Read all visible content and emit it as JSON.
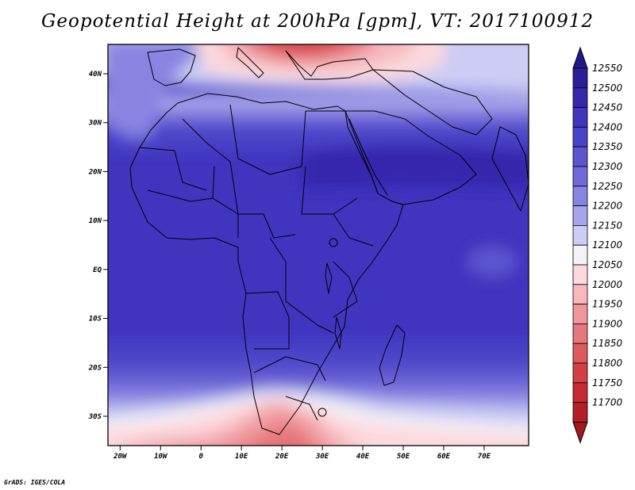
{
  "title": "Geopotential Height at 200hPa [gpm], VT: 2017100912",
  "credit": "GrADS: IGES/COLA",
  "map": {
    "lon_range": [
      -23,
      81
    ],
    "lat_range": [
      -36,
      46
    ],
    "lat_ticks": [
      {
        "value": 40,
        "label": "40N"
      },
      {
        "value": 30,
        "label": "30N"
      },
      {
        "value": 20,
        "label": "20N"
      },
      {
        "value": 10,
        "label": "10N"
      },
      {
        "value": 0,
        "label": "EQ"
      },
      {
        "value": -10,
        "label": "10S"
      },
      {
        "value": -20,
        "label": "20S"
      },
      {
        "value": -30,
        "label": "30S"
      }
    ],
    "lon_ticks": [
      {
        "value": -20,
        "label": "20W"
      },
      {
        "value": -10,
        "label": "10W"
      },
      {
        "value": 0,
        "label": "0"
      },
      {
        "value": 10,
        "label": "10E"
      },
      {
        "value": 20,
        "label": "20E"
      },
      {
        "value": 30,
        "label": "30E"
      },
      {
        "value": 40,
        "label": "40E"
      },
      {
        "value": 50,
        "label": "50E"
      },
      {
        "value": 60,
        "label": "60E"
      },
      {
        "value": 70,
        "label": "70E"
      }
    ]
  },
  "colorbar": {
    "levels": [
      {
        "value": "12550",
        "color": "#2a1f96"
      },
      {
        "value": "12500",
        "color": "#3528ad"
      },
      {
        "value": "12450",
        "color": "#3f35bf"
      },
      {
        "value": "12400",
        "color": "#4a42c8"
      },
      {
        "value": "12350",
        "color": "#5b55cf"
      },
      {
        "value": "12300",
        "color": "#6f6ad8"
      },
      {
        "value": "12250",
        "color": "#8885e2"
      },
      {
        "value": "12200",
        "color": "#a6a4ea"
      },
      {
        "value": "12150",
        "color": "#ccccf4"
      },
      {
        "value": "12100",
        "color": "#f5f1f6"
      },
      {
        "value": "12050",
        "color": "#fcd9dd"
      },
      {
        "value": "12000",
        "color": "#f6b8bd"
      },
      {
        "value": "11950",
        "color": "#ee979c"
      },
      {
        "value": "11900",
        "color": "#e6787d"
      },
      {
        "value": "11850",
        "color": "#dd5a5f"
      },
      {
        "value": "11800",
        "color": "#d43f44"
      },
      {
        "value": "11750",
        "color": "#c72b31"
      },
      {
        "value": "11700",
        "color": "#b21f26"
      }
    ],
    "top_color": "#23188a",
    "bottom_color": "#a21820"
  }
}
